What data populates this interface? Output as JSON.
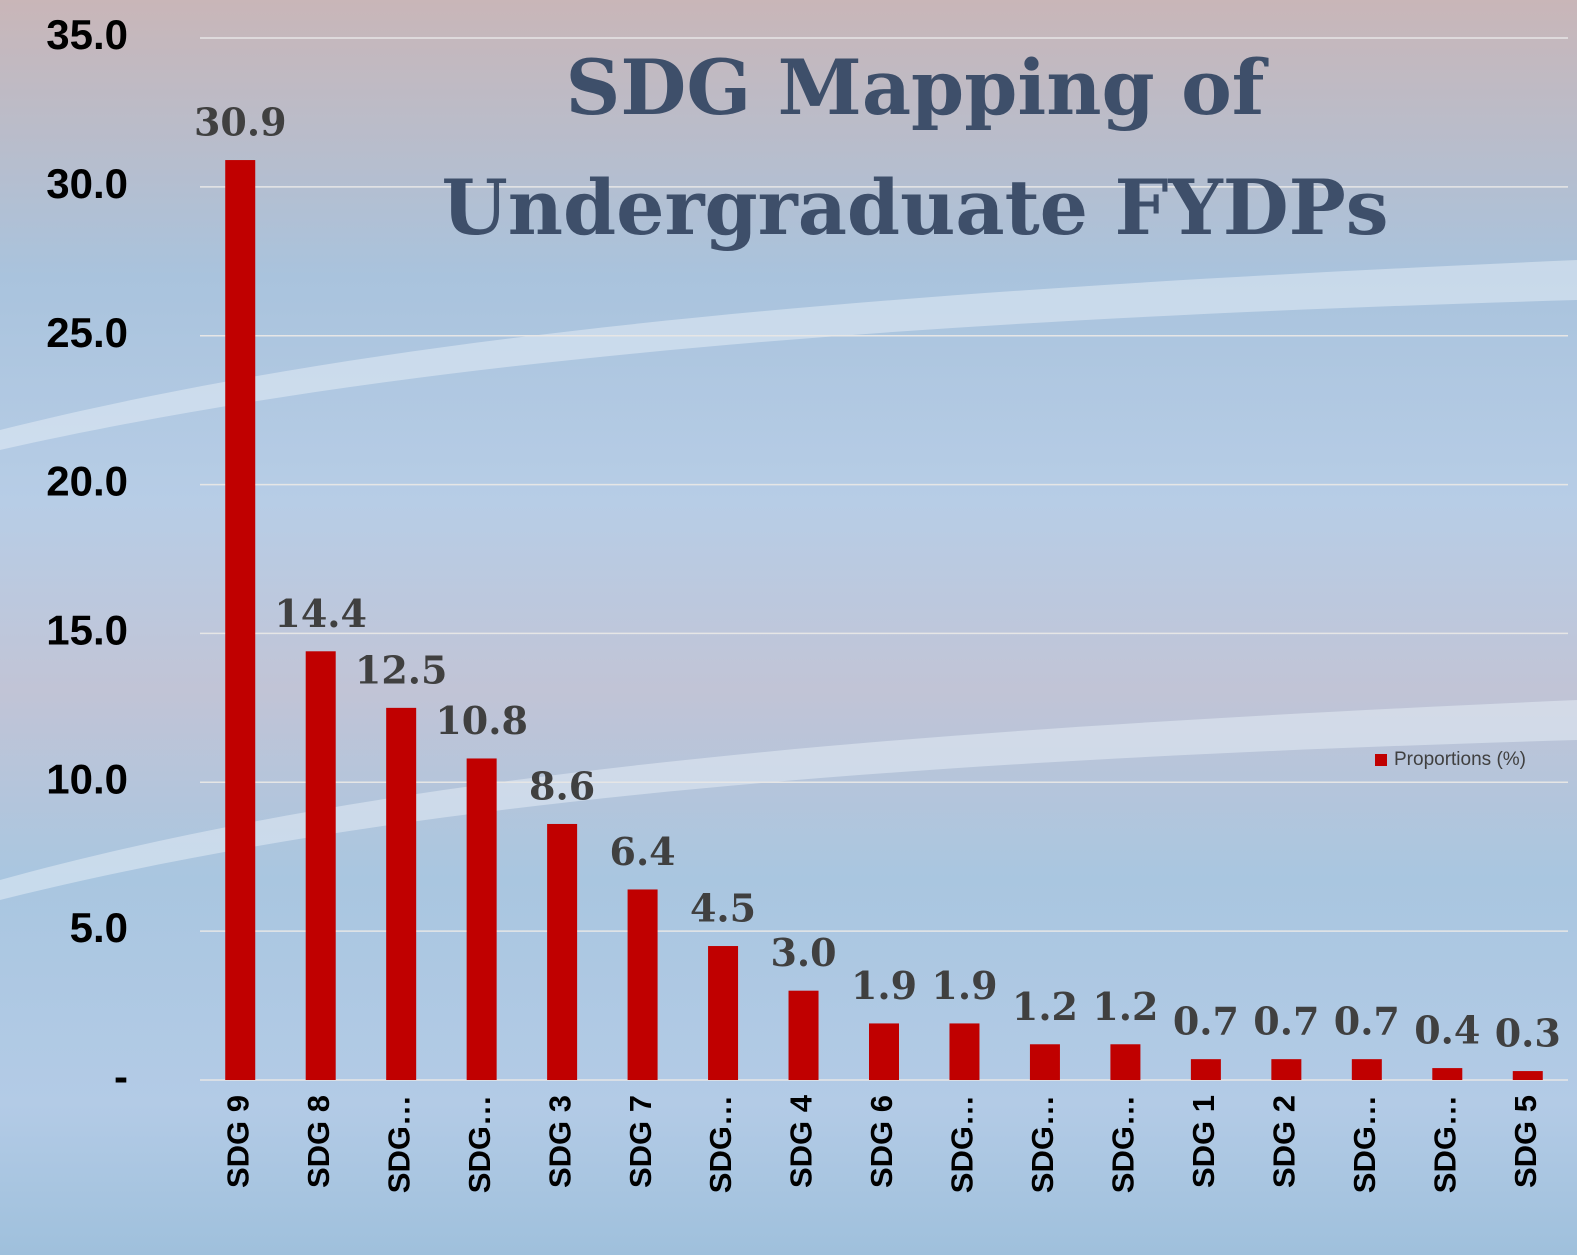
{
  "chart_data": {
    "type": "bar",
    "title": "SDG Mapping of Undergraduate FYDPs",
    "categories": [
      "SDG 9",
      "SDG 8",
      "SDG…",
      "SDG…",
      "SDG 3",
      "SDG 7",
      "SDG…",
      "SDG 4",
      "SDG 6",
      "SDG…",
      "SDG…",
      "SDG…",
      "SDG 1",
      "SDG 2",
      "SDG…",
      "SDG…",
      "SDG 5"
    ],
    "series": [
      {
        "name": "Proportions (%)",
        "color": "#c00000",
        "values": [
          30.9,
          14.4,
          12.5,
          10.8,
          8.6,
          6.4,
          4.5,
          3.0,
          1.9,
          1.9,
          1.2,
          1.2,
          0.7,
          0.7,
          0.7,
          0.4,
          0.3
        ],
        "value_labels": [
          "30.9",
          "14.4",
          "12.5",
          "10.8",
          "8.6",
          "6.4",
          "4.5",
          "3.0",
          "1.9",
          "1.9",
          "1.2",
          "1.2",
          "0.7",
          "0.7",
          "0.7",
          "0.4",
          "0.3"
        ]
      }
    ],
    "ylim": [
      0,
      35
    ],
    "yticks": [
      {
        "value": 0,
        "label": "-"
      },
      {
        "value": 5,
        "label": "5.0"
      },
      {
        "value": 10,
        "label": "10.0"
      },
      {
        "value": 15,
        "label": "15.0"
      },
      {
        "value": 20,
        "label": "20.0"
      },
      {
        "value": 25,
        "label": "25.0"
      },
      {
        "value": 30,
        "label": "30.0"
      },
      {
        "value": 35,
        "label": "35.0"
      }
    ],
    "grid": true,
    "legend": "right"
  }
}
